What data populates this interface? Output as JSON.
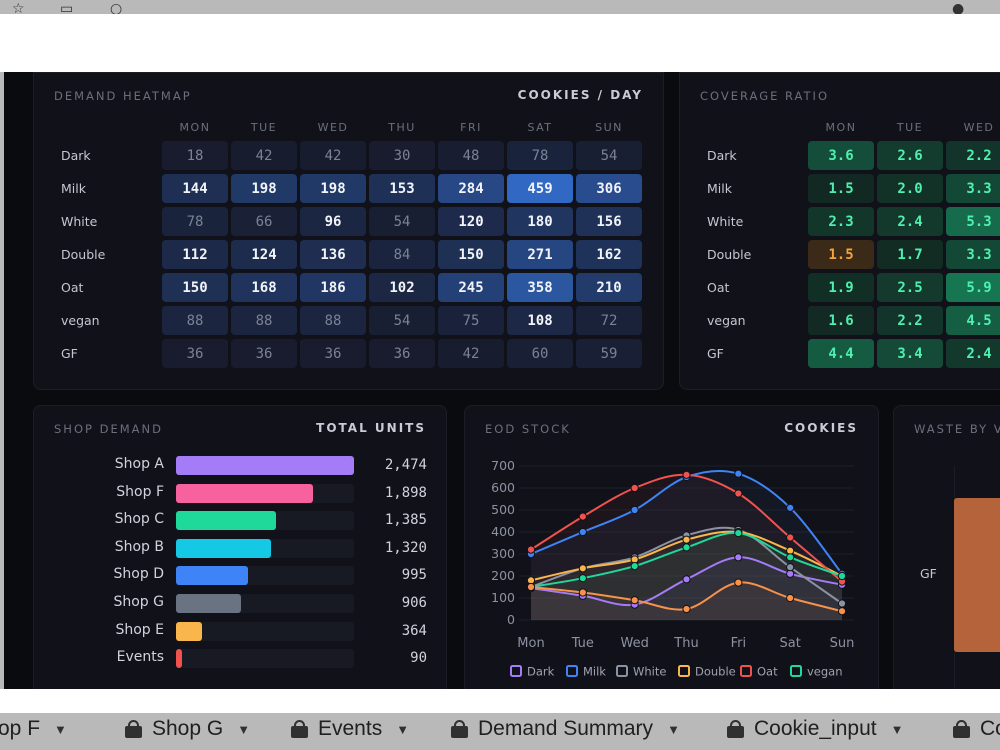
{
  "heatmap": {
    "title": "DEMAND HEATMAP",
    "unit": "COOKIES / DAY",
    "days": [
      "MON",
      "TUE",
      "WED",
      "THU",
      "FRI",
      "SAT",
      "SUN"
    ],
    "rows": [
      {
        "label": "Dark",
        "values": [
          "18",
          "42",
          "42",
          "30",
          "48",
          "78",
          "54"
        ]
      },
      {
        "label": "Milk",
        "values": [
          "144",
          "198",
          "198",
          "153",
          "284",
          "459",
          "306"
        ]
      },
      {
        "label": "White",
        "values": [
          "78",
          "66",
          "96",
          "54",
          "120",
          "180",
          "156"
        ]
      },
      {
        "label": "Double",
        "values": [
          "112",
          "124",
          "136",
          "84",
          "150",
          "271",
          "162"
        ]
      },
      {
        "label": "Oat",
        "values": [
          "150",
          "168",
          "186",
          "102",
          "245",
          "358",
          "210"
        ]
      },
      {
        "label": "vegan",
        "values": [
          "88",
          "88",
          "88",
          "54",
          "75",
          "108",
          "72"
        ]
      },
      {
        "label": "GF",
        "values": [
          "36",
          "36",
          "36",
          "36",
          "42",
          "60",
          "59"
        ]
      }
    ]
  },
  "coverage": {
    "title": "COVERAGE RATIO",
    "days": [
      "MON",
      "TUE",
      "WED"
    ],
    "rows": [
      {
        "label": "Dark",
        "values": [
          "3.6",
          "2.6",
          "2.2"
        ]
      },
      {
        "label": "Milk",
        "values": [
          "1.5",
          "2.0",
          "3.3"
        ]
      },
      {
        "label": "White",
        "values": [
          "2.3",
          "2.4",
          "5.3"
        ]
      },
      {
        "label": "Double",
        "values": [
          "1.5",
          "1.7",
          "3.3"
        ]
      },
      {
        "label": "Oat",
        "values": [
          "1.9",
          "2.5",
          "5.9"
        ]
      },
      {
        "label": "vegan",
        "values": [
          "1.6",
          "2.2",
          "4.5"
        ]
      },
      {
        "label": "GF",
        "values": [
          "4.4",
          "3.4",
          "2.4"
        ]
      }
    ]
  },
  "shop_demand": {
    "title": "SHOP DEMAND",
    "unit": "TOTAL UNITS",
    "items": [
      {
        "label": "Shop A",
        "value": 2474,
        "display": "2,474",
        "color": "#a57cf7"
      },
      {
        "label": "Shop F",
        "value": 1898,
        "display": "1,898",
        "color": "#f7619e"
      },
      {
        "label": "Shop C",
        "value": 1385,
        "display": "1,385",
        "color": "#1ed99a"
      },
      {
        "label": "Shop B",
        "value": 1320,
        "display": "1,320",
        "color": "#15c8e3"
      },
      {
        "label": "Shop D",
        "value": 995,
        "display": "995",
        "color": "#3f84f7"
      },
      {
        "label": "Shop G",
        "value": 906,
        "display": "906",
        "color": "#6a7382"
      },
      {
        "label": "Shop E",
        "value": 364,
        "display": "364",
        "color": "#f9b64a"
      },
      {
        "label": "Events",
        "value": 90,
        "display": "90",
        "color": "#f0524d"
      }
    ]
  },
  "eod_stock": {
    "title": "EOD STOCK",
    "unit": "COOKIES"
  },
  "waste": {
    "title": "WASTE BY V",
    "row_label": "GF"
  },
  "chart_data": {
    "type": "line",
    "x": [
      "Mon",
      "Tue",
      "Wed",
      "Thu",
      "Fri",
      "Sat",
      "Sun"
    ],
    "ylim": [
      0,
      700
    ],
    "yticks": [
      "0",
      "100",
      "200",
      "300",
      "400",
      "500",
      "600",
      "700"
    ],
    "series": [
      {
        "name": "Dark",
        "color": "#a57cf7",
        "values": [
          145,
          110,
          70,
          185,
          285,
          210,
          160
        ]
      },
      {
        "name": "Milk",
        "color": "#3f84f7",
        "values": [
          300,
          400,
          500,
          650,
          665,
          510,
          210
        ]
      },
      {
        "name": "White",
        "color": "#8a93a3",
        "values": [
          150,
          235,
          285,
          385,
          410,
          240,
          75
        ]
      },
      {
        "name": "Double",
        "color": "#f9b64a",
        "values": [
          180,
          235,
          275,
          365,
          400,
          315,
          200
        ]
      },
      {
        "name": "Oat",
        "color": "#f0524d",
        "values": [
          320,
          470,
          600,
          660,
          575,
          375,
          175
        ]
      },
      {
        "name": "vegan",
        "color": "#1ed99a",
        "values": [
          150,
          190,
          245,
          330,
          395,
          285,
          200
        ]
      },
      {
        "name": "",
        "color": "#f7924a",
        "values": [
          150,
          125,
          90,
          50,
          170,
          100,
          40
        ]
      }
    ]
  },
  "tabs": [
    {
      "label": "op F"
    },
    {
      "label": "Shop G"
    },
    {
      "label": "Events"
    },
    {
      "label": "Demand Summary"
    },
    {
      "label": "Cookie_input"
    },
    {
      "label": "Co"
    }
  ]
}
